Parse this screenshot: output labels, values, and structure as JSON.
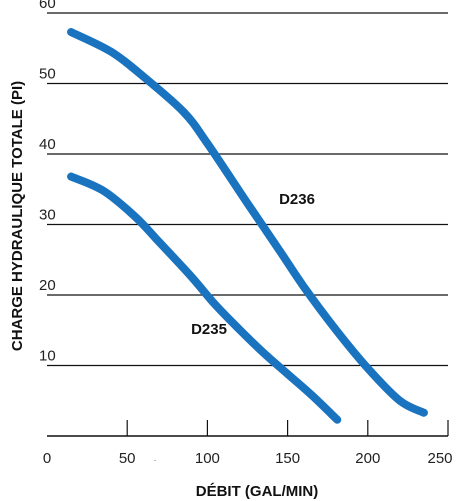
{
  "chart_data": {
    "type": "line",
    "title": "",
    "xlabel": "DÉBIT (GAL/MIN)",
    "ylabel": "CHARGE HYDRAULIQUE TOTALE (PI)",
    "xlim": [
      0,
      250
    ],
    "ylim": [
      0,
      60
    ],
    "x_ticks": [
      "0",
      "50",
      "100",
      "150",
      "200",
      "250"
    ],
    "y_ticks": [
      "10",
      "20",
      "30",
      "40",
      "50",
      "60"
    ],
    "x_extra_mark": "·",
    "grid": "horizontal",
    "line_color": "#1a73bf",
    "series": [
      {
        "name": "D236",
        "points": [
          [
            15,
            57.3
          ],
          [
            40,
            54.5
          ],
          [
            60,
            51.0
          ],
          [
            85,
            46.0
          ],
          [
            100,
            41.5
          ],
          [
            125,
            33.0
          ],
          [
            145,
            26.3
          ],
          [
            160,
            21.2
          ],
          [
            180,
            15.1
          ],
          [
            200,
            9.6
          ],
          [
            220,
            5.0
          ],
          [
            235,
            3.3
          ]
        ]
      },
      {
        "name": "D235",
        "points": [
          [
            15,
            36.8
          ],
          [
            35,
            34.8
          ],
          [
            55,
            31.1
          ],
          [
            70,
            27.5
          ],
          [
            90,
            22.6
          ],
          [
            105,
            18.6
          ],
          [
            120,
            15.1
          ],
          [
            135,
            11.8
          ],
          [
            150,
            8.8
          ],
          [
            165,
            5.8
          ],
          [
            181,
            2.3
          ]
        ]
      }
    ]
  }
}
